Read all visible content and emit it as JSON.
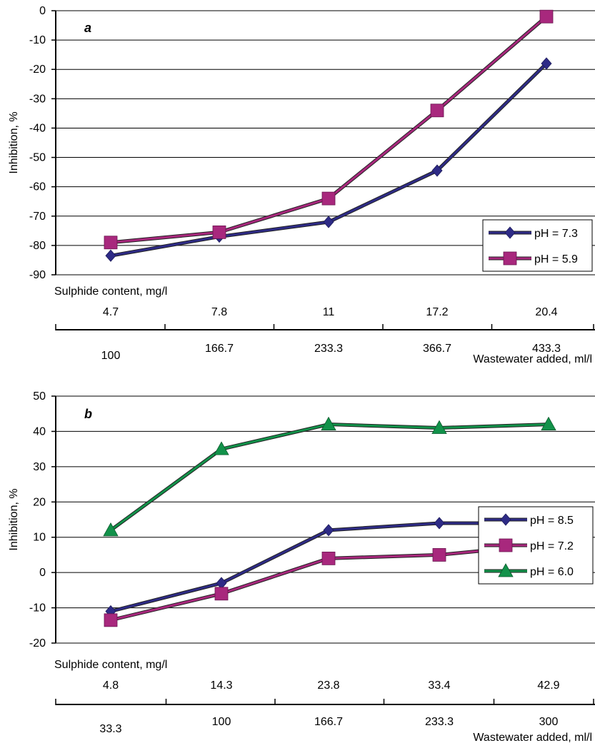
{
  "chart_data": [
    {
      "type": "line",
      "panel_label": "a",
      "ylabel": "Inhibition, %",
      "ylim": [
        -90,
        0
      ],
      "yticks": [
        0,
        -10,
        -20,
        -30,
        -40,
        -50,
        -60,
        -70,
        -80,
        -90
      ],
      "grid": true,
      "legend_position": "bottom-right",
      "secondary_axis_label": "Sulphide content, mg/l",
      "secondary_categories": [
        "4.7",
        "7.8",
        "11",
        "17.2",
        "20.4"
      ],
      "xlabel": "Wastewater added, ml/l",
      "categories": [
        "100",
        "166.7",
        "233.3",
        "366.7",
        "433.3"
      ],
      "series": [
        {
          "name": "pH = 7.3",
          "marker": "diamond",
          "color": "#2E2B86",
          "values": [
            -83.5,
            -77,
            -72,
            -54.5,
            -18
          ]
        },
        {
          "name": "pH = 5.9",
          "marker": "square",
          "color": "#A8287D",
          "values": [
            -79,
            -75.5,
            -64,
            -34,
            -2
          ]
        }
      ]
    },
    {
      "type": "line",
      "panel_label": "b",
      "ylabel": "Inhibition, %",
      "ylim": [
        -20,
        50
      ],
      "yticks": [
        50,
        40,
        30,
        20,
        10,
        0,
        -10,
        -20
      ],
      "grid": true,
      "legend_position": "bottom-right",
      "secondary_axis_label": "Sulphide content, mg/l",
      "secondary_categories": [
        "4.8",
        "14.3",
        "23.8",
        "33.4",
        "42.9"
      ],
      "xlabel": "Wastewater added, ml/l",
      "categories": [
        "33.3",
        "100",
        "166.7",
        "233.3",
        "300"
      ],
      "series": [
        {
          "name": "pH = 8.5",
          "marker": "diamond",
          "color": "#2E2B86",
          "values": [
            -11,
            -3,
            12,
            14,
            14
          ]
        },
        {
          "name": "pH = 7.2",
          "marker": "square",
          "color": "#A8287D",
          "values": [
            -13.5,
            -6,
            4,
            5,
            8
          ]
        },
        {
          "name": "pH = 6.0",
          "marker": "triangle",
          "color": "#12924A",
          "values": [
            12,
            35,
            42,
            41,
            42
          ]
        }
      ]
    }
  ]
}
